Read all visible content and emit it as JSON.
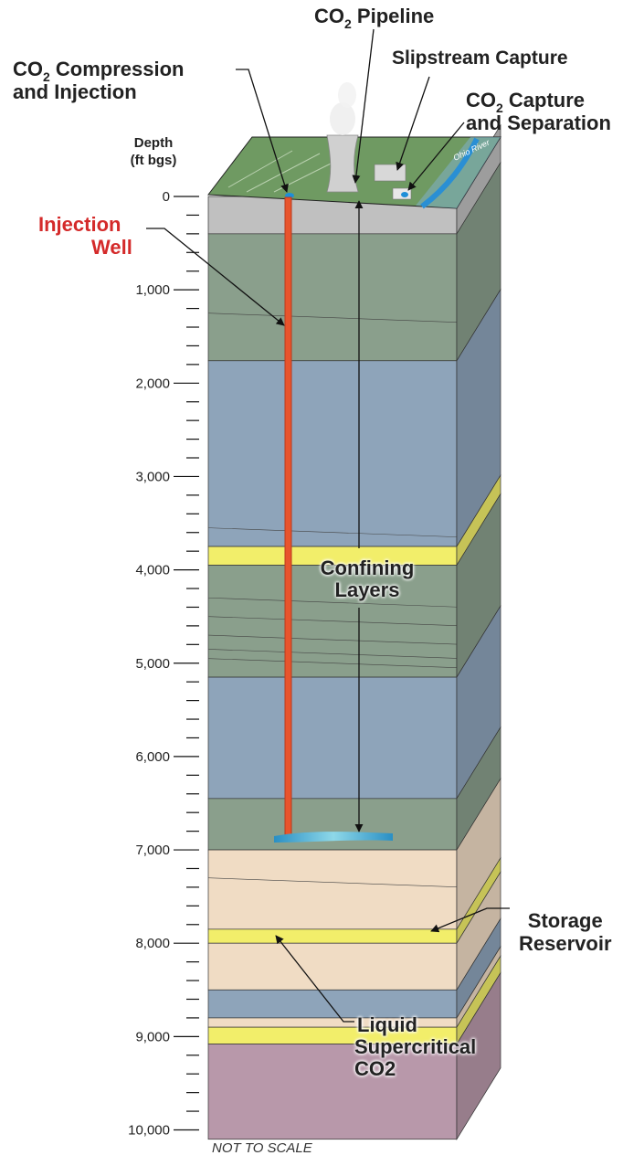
{
  "labels": {
    "compression_line1_prefix": "CO",
    "compression_line1_sub": "2",
    "compression_line1_suffix": " Compression",
    "compression_line2": "and Injection",
    "pipeline_prefix": "CO",
    "pipeline_sub": "2",
    "pipeline_suffix": " Pipeline",
    "slipstream": "Slipstream Capture",
    "capture_line1_prefix": "CO",
    "capture_line1_sub": "2",
    "capture_line1_suffix": " Capture",
    "capture_line2": "and Separation",
    "injection_well_line1": "Injection",
    "injection_well_line2": "Well",
    "confining_line1": "Confining",
    "confining_line2": "Layers",
    "storage_line1": "Storage",
    "storage_line2": "Reservoir",
    "liquid_line1": "Liquid",
    "liquid_line2": "Supercritical",
    "liquid_line3": "CO2",
    "river_label": "Ohio River"
  },
  "depth_axis": {
    "title_line1": "Depth",
    "title_line2": "(ft bgs)",
    "ticks": [
      "0",
      "1,000",
      "2,000",
      "3,000",
      "4,000",
      "5,000",
      "6,000",
      "7,000",
      "8,000",
      "9,000",
      "10,000"
    ]
  },
  "footer": {
    "note": "NOT TO SCALE"
  },
  "colors": {
    "green_layer": "#8a9f8c",
    "blue_layer": "#8ea4ba",
    "yellow_layer": "#f2ee6a",
    "tan_layer": "#f0dcc4",
    "mauve_layer": "#b898aa",
    "gray_layer": "#c0c0c0",
    "well": "#e8542c",
    "surface": "#6f9a62"
  }
}
